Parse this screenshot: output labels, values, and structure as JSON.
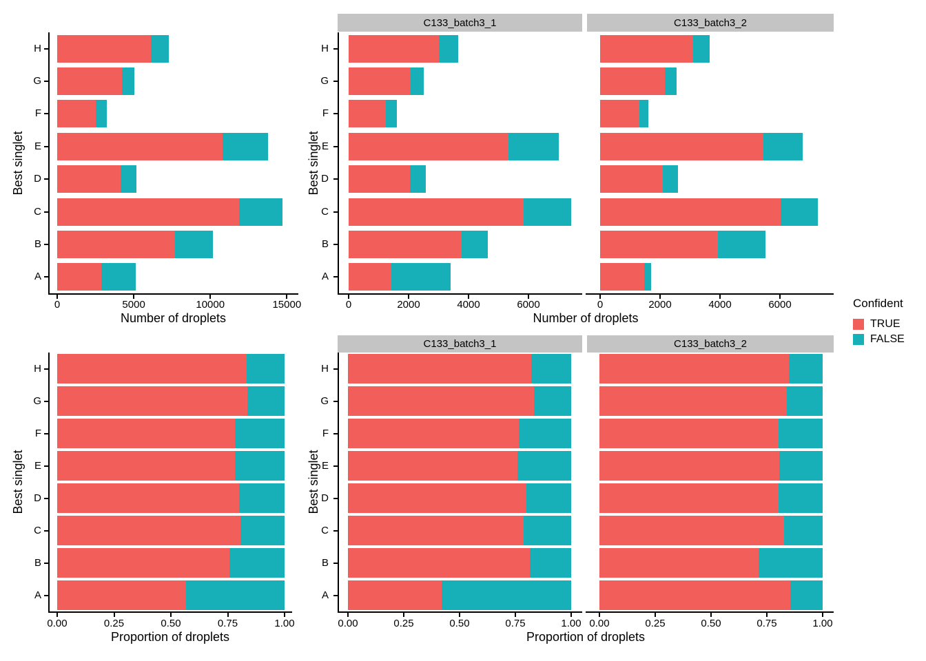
{
  "figure": {
    "background": "#FFFFFF",
    "strip_bg": "#C4C4C4",
    "axis_color": "#000000"
  },
  "legend": {
    "title": "Confident",
    "position": "right",
    "entries": [
      {
        "label": "TRUE",
        "color": "#F25E5A"
      },
      {
        "label": "FALSE",
        "color": "#18B0B8"
      }
    ]
  },
  "chart_data": [
    {
      "id": "counts-overall",
      "type": "bar",
      "orientation": "horizontal",
      "stacked": true,
      "categories": [
        "A",
        "B",
        "C",
        "D",
        "E",
        "F",
        "G",
        "H"
      ],
      "series": [
        {
          "name": "TRUE",
          "color": "#F25E5A",
          "values": [
            2890,
            7710,
            11870,
            4140,
            10780,
            2530,
            4230,
            6100
          ]
        },
        {
          "name": "FALSE",
          "color": "#18B0B8",
          "values": [
            2220,
            2450,
            2830,
            1030,
            3000,
            700,
            830,
            1210
          ]
        }
      ],
      "xlabel": "Number of droplets",
      "ylabel": "Best singlet",
      "xlim": [
        0,
        15750
      ],
      "xticks": [
        0,
        5000,
        10000,
        15000
      ],
      "xtick_labels": [
        "0",
        "5000",
        "10000",
        "15000"
      ],
      "grid": false
    },
    {
      "id": "counts-by-batch",
      "type": "bar",
      "orientation": "horizontal",
      "stacked": true,
      "categories": [
        "A",
        "B",
        "C",
        "D",
        "E",
        "F",
        "G",
        "H"
      ],
      "facets": [
        {
          "label": "C133_batch3_1",
          "series": [
            {
              "name": "TRUE",
              "color": "#F25E5A",
              "values": [
                1430,
                3780,
                5850,
                2050,
                5330,
                1230,
                2080,
                3000
              ]
            },
            {
              "name": "FALSE",
              "color": "#18B0B8",
              "values": [
                1970,
                860,
                1580,
                520,
                1690,
                380,
                420,
                660
              ]
            }
          ]
        },
        {
          "label": "C133_batch3_2",
          "series": [
            {
              "name": "TRUE",
              "color": "#F25E5A",
              "values": [
                1460,
                3930,
                6020,
                2090,
                5450,
                1300,
                2150,
                3100
              ]
            },
            {
              "name": "FALSE",
              "color": "#18B0B8",
              "values": [
                250,
                1590,
                1250,
                510,
                1310,
                320,
                410,
                550
              ]
            }
          ]
        }
      ],
      "xlabel": "Number of droplets",
      "ylabel": "Best singlet",
      "xlim": [
        0,
        7800
      ],
      "xticks": [
        0,
        2000,
        4000,
        6000
      ],
      "xtick_labels": [
        "0",
        "2000",
        "4000",
        "6000"
      ],
      "grid": false
    },
    {
      "id": "proportion-overall",
      "type": "bar",
      "orientation": "horizontal",
      "stacked": true,
      "normalized": true,
      "categories": [
        "A",
        "B",
        "C",
        "D",
        "E",
        "F",
        "G",
        "H"
      ],
      "series": [
        {
          "name": "TRUE",
          "color": "#F25E5A",
          "values": [
            0.566,
            0.759,
            0.807,
            0.801,
            0.782,
            0.783,
            0.836,
            0.834
          ]
        },
        {
          "name": "FALSE",
          "color": "#18B0B8",
          "values": [
            0.434,
            0.241,
            0.193,
            0.199,
            0.218,
            0.217,
            0.164,
            0.166
          ]
        }
      ],
      "xlabel": "Proportion of droplets",
      "ylabel": "Best singlet",
      "xlim": [
        0,
        1.02
      ],
      "xticks": [
        0,
        0.25,
        0.5,
        0.75,
        1
      ],
      "xtick_labels": [
        "0.00",
        "0.25",
        "0.50",
        "0.75",
        "1.00"
      ],
      "grid": false
    },
    {
      "id": "proportion-by-batch",
      "type": "bar",
      "orientation": "horizontal",
      "stacked": true,
      "normalized": true,
      "categories": [
        "A",
        "B",
        "C",
        "D",
        "E",
        "F",
        "G",
        "H"
      ],
      "facets": [
        {
          "label": "C133_batch3_1",
          "series": [
            {
              "name": "TRUE",
              "color": "#F25E5A",
              "values": [
                0.421,
                0.815,
                0.787,
                0.798,
                0.759,
                0.765,
                0.832,
                0.82
              ]
            },
            {
              "name": "FALSE",
              "color": "#18B0B8",
              "values": [
                0.579,
                0.185,
                0.213,
                0.202,
                0.241,
                0.235,
                0.168,
                0.18
              ]
            }
          ]
        },
        {
          "label": "C133_batch3_2",
          "series": [
            {
              "name": "TRUE",
              "color": "#F25E5A",
              "values": [
                0.854,
                0.712,
                0.828,
                0.804,
                0.806,
                0.802,
                0.84,
                0.849
              ]
            },
            {
              "name": "FALSE",
              "color": "#18B0B8",
              "values": [
                0.146,
                0.288,
                0.172,
                0.196,
                0.194,
                0.198,
                0.16,
                0.151
              ]
            }
          ]
        }
      ],
      "xlabel": "Proportion of droplets",
      "ylabel": "Best singlet",
      "xlim": [
        0,
        1.02
      ],
      "xticks": [
        0,
        0.25,
        0.5,
        0.75,
        1
      ],
      "xtick_labels": [
        "0.00",
        "0.25",
        "0.50",
        "0.75",
        "1.00"
      ],
      "grid": false
    }
  ]
}
